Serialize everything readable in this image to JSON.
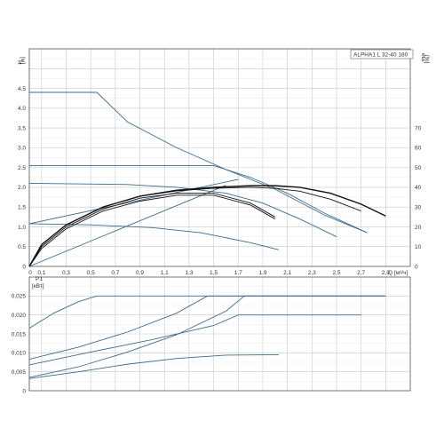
{
  "chart_data": [
    {
      "type": "line",
      "title": "ALPHA1 L 32-40 180",
      "ylabel_lines": [
        "H",
        "[м]"
      ],
      "y2label_lines": [
        "eta",
        "[%]"
      ],
      "xlabel": "Q [м³/ч]",
      "xlim": [
        0,
        3.1
      ],
      "ylim": [
        0,
        5.5
      ],
      "y2lim": [
        0,
        110
      ],
      "x_ticks": [
        "0",
        "0,1",
        "0,3",
        "0,5",
        "0,7",
        "0,9",
        "1,1",
        "1,3",
        "1,5",
        "1,7",
        "1,9",
        "2,1",
        "2,3",
        "2,5",
        "2,7",
        "2,9"
      ],
      "x_tick_values": [
        0,
        0.1,
        0.3,
        0.5,
        0.7,
        0.9,
        1.1,
        1.3,
        1.5,
        1.7,
        1.9,
        2.1,
        2.3,
        2.5,
        2.7,
        2.9
      ],
      "y_ticks": [
        "0",
        "0.5",
        "1.0",
        "1.5",
        "2.0",
        "2.5",
        "3.0",
        "3.5",
        "4.0",
        "4.5"
      ],
      "y_tick_values": [
        0,
        0.5,
        1.0,
        1.5,
        2.0,
        2.5,
        3.0,
        3.5,
        4.0,
        4.5
      ],
      "y2_ticks": [
        "0",
        "10",
        "20",
        "30",
        "40",
        "50",
        "60",
        "70"
      ],
      "y2_tick_values": [
        0,
        10,
        20,
        30,
        40,
        50,
        60,
        70
      ],
      "grid": true,
      "line_color": "#3f6a8a",
      "eta_color": "#111111",
      "series_head": [
        {
          "x": [
            0,
            0.55,
            0.8,
            1.2,
            1.6,
            2.0,
            2.4,
            2.75
          ],
          "y": [
            4.4,
            4.4,
            3.65,
            3.0,
            2.45,
            1.95,
            1.3,
            0.85
          ]
        },
        {
          "x": [
            0,
            1.5,
            1.8,
            2.1,
            2.4,
            2.75
          ],
          "y": [
            2.55,
            2.55,
            2.25,
            1.85,
            1.35,
            0.85
          ]
        },
        {
          "x": [
            0,
            0.8,
            1.2,
            1.6,
            1.9,
            2.2,
            2.5
          ],
          "y": [
            2.1,
            2.07,
            2.0,
            1.85,
            1.6,
            1.2,
            0.75
          ]
        },
        {
          "x": [
            0,
            0.5,
            1.0,
            1.4,
            1.8,
            2.03
          ],
          "y": [
            1.08,
            1.05,
            0.98,
            0.85,
            0.6,
            0.42
          ]
        },
        {
          "x": [
            0,
            1.7
          ],
          "y": [
            1.08,
            2.2
          ]
        },
        {
          "x": [
            0,
            1.6
          ],
          "y": [
            0.0,
            2.05
          ]
        }
      ],
      "series_eta": [
        {
          "x": [
            0,
            0.1,
            0.3,
            0.6,
            0.9,
            1.2,
            1.5,
            1.8,
            2.0,
            2.2,
            2.45,
            2.7,
            2.9
          ],
          "y": [
            0,
            11,
            21,
            30,
            35.5,
            38.5,
            40,
            40.8,
            40.8,
            40,
            37,
            31.5,
            25.5
          ]
        },
        {
          "x": [
            0,
            0.1,
            0.3,
            0.6,
            0.9,
            1.2,
            1.5,
            1.8,
            2.0,
            2.2,
            2.45,
            2.7
          ],
          "y": [
            0,
            11,
            21,
            30,
            35.5,
            38.2,
            39.5,
            40,
            39.5,
            38,
            34,
            28
          ]
        },
        {
          "x": [
            0,
            0.1,
            0.3,
            0.6,
            0.9,
            1.2,
            1.5,
            1.8,
            2.0
          ],
          "y": [
            0,
            10,
            20,
            29,
            34.5,
            37,
            37,
            32,
            25
          ]
        },
        {
          "x": [
            0,
            0.1,
            0.3,
            0.6,
            0.9,
            1.2,
            1.5,
            1.8,
            2.0
          ],
          "y": [
            0,
            9,
            19,
            28,
            33,
            36,
            36,
            31,
            24
          ]
        }
      ]
    },
    {
      "type": "line",
      "ylabel_lines": [
        "P1",
        "[кВт]"
      ],
      "xlim": [
        0,
        3.1
      ],
      "ylim": [
        0,
        0.03
      ],
      "y_ticks": [
        "0",
        "0,005",
        "0,010",
        "0,015",
        "0,020",
        "0,025"
      ],
      "y_tick_values": [
        0,
        0.005,
        0.01,
        0.015,
        0.02,
        0.025
      ],
      "grid": true,
      "line_color": "#3f6a8a",
      "series": [
        {
          "x": [
            0,
            0.2,
            0.4,
            0.55,
            2.9
          ],
          "y": [
            0.0165,
            0.0205,
            0.0235,
            0.025,
            0.025
          ]
        },
        {
          "x": [
            0,
            0.4,
            0.8,
            1.2,
            1.45,
            2.9
          ],
          "y": [
            0.0083,
            0.0115,
            0.0155,
            0.0205,
            0.025,
            0.025
          ]
        },
        {
          "x": [
            0,
            0.4,
            0.8,
            1.2,
            1.6,
            1.75,
            2.9
          ],
          "y": [
            0.0035,
            0.0063,
            0.0102,
            0.0148,
            0.021,
            0.025,
            0.025
          ]
        },
        {
          "x": [
            0,
            0.5,
            1.0,
            1.5,
            1.7,
            2.7
          ],
          "y": [
            0.0068,
            0.0102,
            0.0135,
            0.0172,
            0.02,
            0.02
          ]
        },
        {
          "x": [
            0,
            0.4,
            0.8,
            1.2,
            1.6,
            2.03
          ],
          "y": [
            0.0032,
            0.005,
            0.007,
            0.0085,
            0.0094,
            0.0095
          ]
        }
      ]
    }
  ]
}
